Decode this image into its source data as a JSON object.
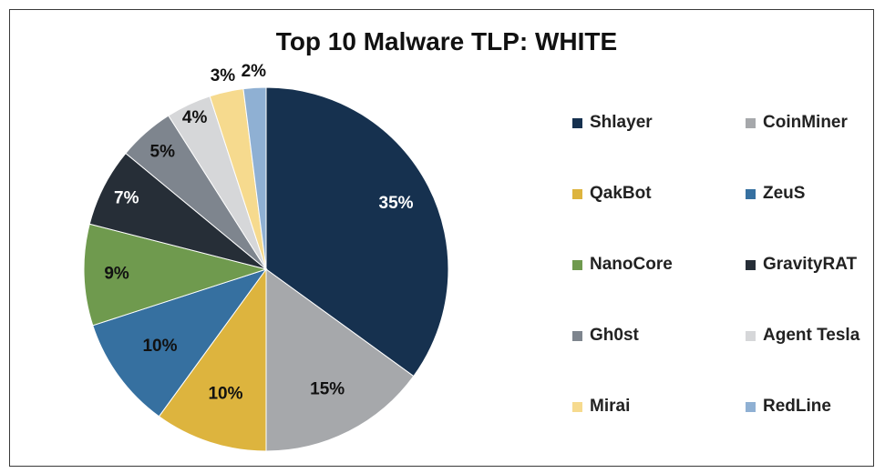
{
  "chart_data": {
    "type": "pie",
    "title": "Top 10 Malware TLP: WHITE",
    "legend_placement": "right",
    "slices": [
      {
        "name": "Shlayer",
        "value": 35,
        "label": "35%",
        "color": "#16314f",
        "label_color": "#ffffff"
      },
      {
        "name": "CoinMiner",
        "value": 15,
        "label": "15%",
        "color": "#a6a8ab",
        "label_color": "#111111"
      },
      {
        "name": "QakBot",
        "value": 10,
        "label": "10%",
        "color": "#ddb43e",
        "label_color": "#111111"
      },
      {
        "name": "ZeuS",
        "value": 10,
        "label": "10%",
        "color": "#3670a0",
        "label_color": "#111111"
      },
      {
        "name": "NanoCore",
        "value": 9,
        "label": "9%",
        "color": "#6f9a4e",
        "label_color": "#111111"
      },
      {
        "name": "GravityRAT",
        "value": 7,
        "label": "7%",
        "color": "#262e37",
        "label_color": "#ffffff"
      },
      {
        "name": "Gh0st",
        "value": 5,
        "label": "5%",
        "color": "#7e858e",
        "label_color": "#111111"
      },
      {
        "name": "Agent Tesla",
        "value": 4,
        "label": "4%",
        "color": "#d6d7d9",
        "label_color": "#111111"
      },
      {
        "name": "Mirai",
        "value": 3,
        "label": "3%",
        "color": "#f6da8e",
        "label_color": "#111111"
      },
      {
        "name": "RedLine",
        "value": 2,
        "label": "2%",
        "color": "#8fb0d3",
        "label_color": "#111111"
      }
    ]
  }
}
